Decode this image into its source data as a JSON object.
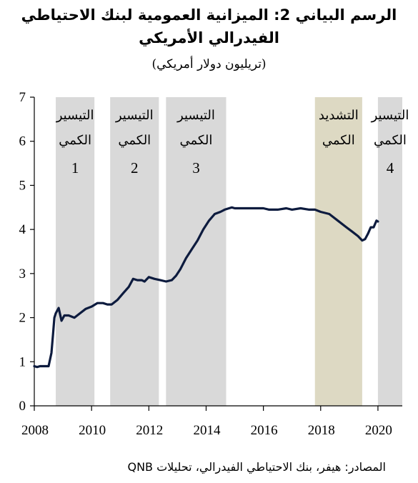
{
  "title_line1": "الرسم البياني 2: الميزانية العمومية لبنك الاحتياطي",
  "title_line2": "الفيدرالي الأمريكي",
  "subtitle": "(تريليون دولار أمريكي)",
  "source": "المصادر: هيفر، بنك الاحتياطي الفيدرالي، تحليلات QNB",
  "colors": {
    "line": "#0d1b3e",
    "easing_band": "#d9d9d9",
    "tightening_band": "#ddd9c3",
    "axis": "#000000"
  },
  "chart_data": {
    "type": "line",
    "title": "الرسم البياني 2: الميزانية العمومية لبنك الاحتياطي الفيدرالي الأمريكي",
    "ylabel": "(تريليون دولار أمريكي)",
    "xlim": [
      2008,
      2020.85
    ],
    "ylim": [
      0,
      7
    ],
    "x_ticks": [
      "2008",
      "2010",
      "2012",
      "2014",
      "2016",
      "2018",
      "2020"
    ],
    "y_ticks": [
      "0",
      "1",
      "2",
      "3",
      "4",
      "5",
      "6",
      "7"
    ],
    "grid": false,
    "bands": [
      {
        "start": 2008.75,
        "end": 2010.1,
        "type": "easing",
        "label_line1": "التيسير",
        "label_line2": "الكمي",
        "number": "1"
      },
      {
        "start": 2010.65,
        "end": 2012.35,
        "type": "easing",
        "label_line1": "التيسير",
        "label_line2": "الكمي",
        "number": "2"
      },
      {
        "start": 2012.6,
        "end": 2014.7,
        "type": "easing",
        "label_line1": "التيسير",
        "label_line2": "الكمي",
        "number": "3"
      },
      {
        "start": 2017.8,
        "end": 2019.45,
        "type": "tightening",
        "label_line1": "التشديد",
        "label_line2": "الكمي",
        "number": ""
      },
      {
        "start": 2020.0,
        "end": 2020.85,
        "type": "easing",
        "label_line1": "التيسير",
        "label_line2": "الكمي",
        "number": "4"
      }
    ],
    "series": [
      {
        "x": [
          2008.0,
          2008.1,
          2008.2,
          2008.5,
          2008.6,
          2008.65,
          2008.7,
          2008.75,
          2008.85,
          2008.95,
          2009.05,
          2009.2,
          2009.4,
          2009.6,
          2009.8,
          2010.0,
          2010.2,
          2010.4,
          2010.55,
          2010.7,
          2010.9,
          2011.1,
          2011.3,
          2011.45,
          2011.6,
          2011.75,
          2011.85,
          2012.0,
          2012.2,
          2012.4,
          2012.6,
          2012.8,
          2012.95,
          2013.1,
          2013.3,
          2013.5,
          2013.7,
          2013.9,
          2014.1,
          2014.3,
          2014.5,
          2014.65,
          2014.8,
          2014.9,
          2015.0,
          2015.5,
          2016.0,
          2016.2,
          2016.5,
          2016.8,
          2017.0,
          2017.3,
          2017.6,
          2017.8,
          2018.0,
          2018.3,
          2018.6,
          2018.9,
          2019.1,
          2019.3,
          2019.45,
          2019.55,
          2019.65,
          2019.75,
          2019.85,
          2019.95,
          2020.0
        ],
        "y": [
          0.9,
          0.88,
          0.9,
          0.9,
          1.2,
          1.6,
          2.0,
          2.1,
          2.22,
          1.93,
          2.05,
          2.05,
          2.0,
          2.1,
          2.2,
          2.25,
          2.33,
          2.33,
          2.3,
          2.3,
          2.4,
          2.55,
          2.7,
          2.88,
          2.85,
          2.85,
          2.82,
          2.92,
          2.88,
          2.85,
          2.82,
          2.85,
          2.95,
          3.1,
          3.35,
          3.55,
          3.75,
          4.0,
          4.2,
          4.35,
          4.4,
          4.45,
          4.48,
          4.5,
          4.48,
          4.48,
          4.48,
          4.45,
          4.45,
          4.48,
          4.45,
          4.48,
          4.45,
          4.45,
          4.4,
          4.35,
          4.2,
          4.05,
          3.95,
          3.85,
          3.75,
          3.78,
          3.9,
          4.05,
          4.05,
          4.2,
          4.18
        ]
      }
    ]
  }
}
